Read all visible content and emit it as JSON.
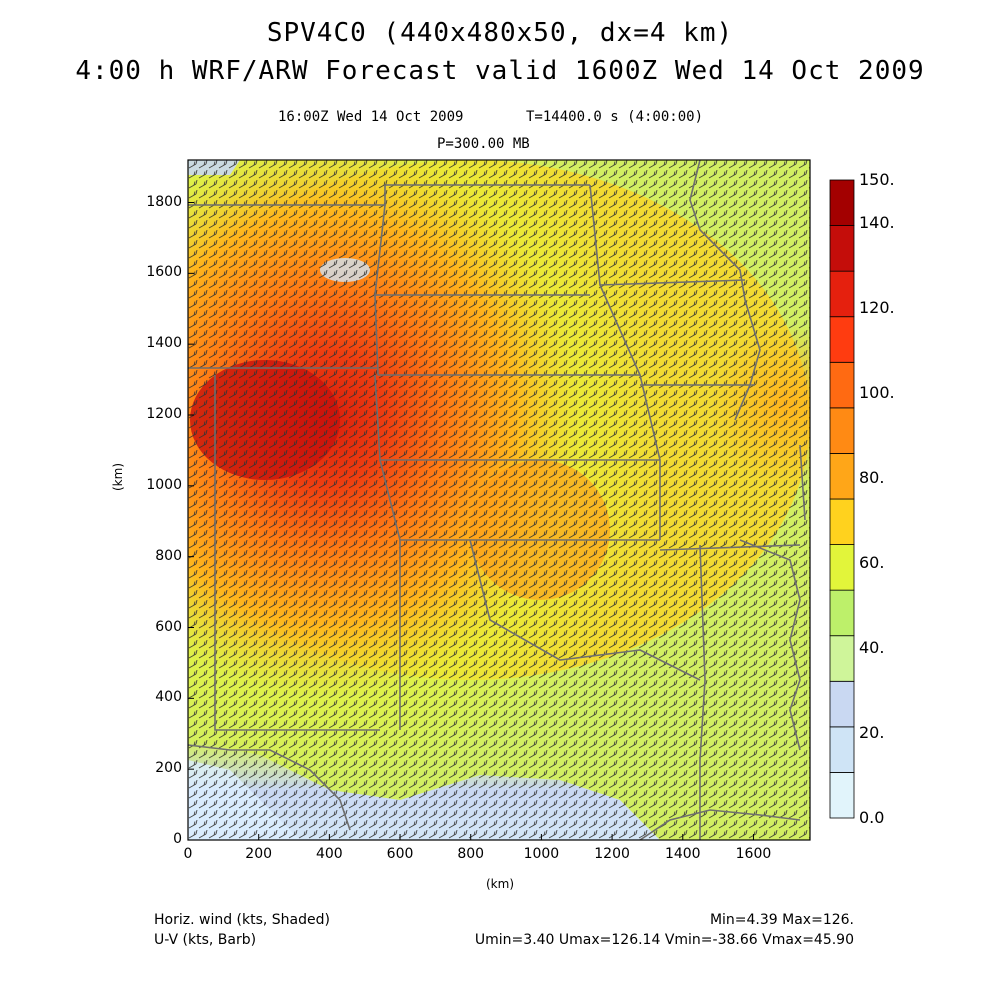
{
  "header": {
    "title_line1": "SPV4C0 (440x480x50, dx=4 km)",
    "title_line2": "4:00 h WRF/ARW Forecast valid 1600Z Wed 14 Oct 2009",
    "valid_time": "16:00Z Wed 14 Oct 2009",
    "model_time": "T=14400.0 s (4:00:00)",
    "pressure_level": "P=300.00 MB"
  },
  "axes": {
    "x_label": "(km)",
    "y_label": "(km)",
    "x_range": [
      0,
      1760
    ],
    "y_range": [
      0,
      1920
    ],
    "x_ticks": [
      "0",
      "200",
      "400",
      "600",
      "800",
      "1000",
      "1200",
      "1400",
      "1600"
    ],
    "y_ticks": [
      "0",
      "200",
      "400",
      "600",
      "800",
      "1000",
      "1200",
      "1400",
      "1600",
      "1800"
    ]
  },
  "colorbar": {
    "labels": [
      "0.0",
      "20.",
      "40.",
      "60.",
      "80.",
      "100.",
      "120.",
      "140.",
      "150."
    ],
    "colors": [
      "#e1f4fb",
      "#cfe4f6",
      "#c9d8f2",
      "#cff59a",
      "#bdf06a",
      "#e2f53a",
      "#ffd21e",
      "#ffa618",
      "#ff8a14",
      "#ff6a12",
      "#ff3c10",
      "#e5200e",
      "#c40d0a",
      "#a30000"
    ]
  },
  "footer": {
    "shaded_label": "Horiz. wind (kts, Shaded)",
    "barb_label": "U-V (kts, Barb)",
    "minmax": "Min=4.39 Max=126.",
    "uv_stats": "Umin=3.40 Umax=126.14 Vmin=-38.66 Vmax=45.90"
  }
}
